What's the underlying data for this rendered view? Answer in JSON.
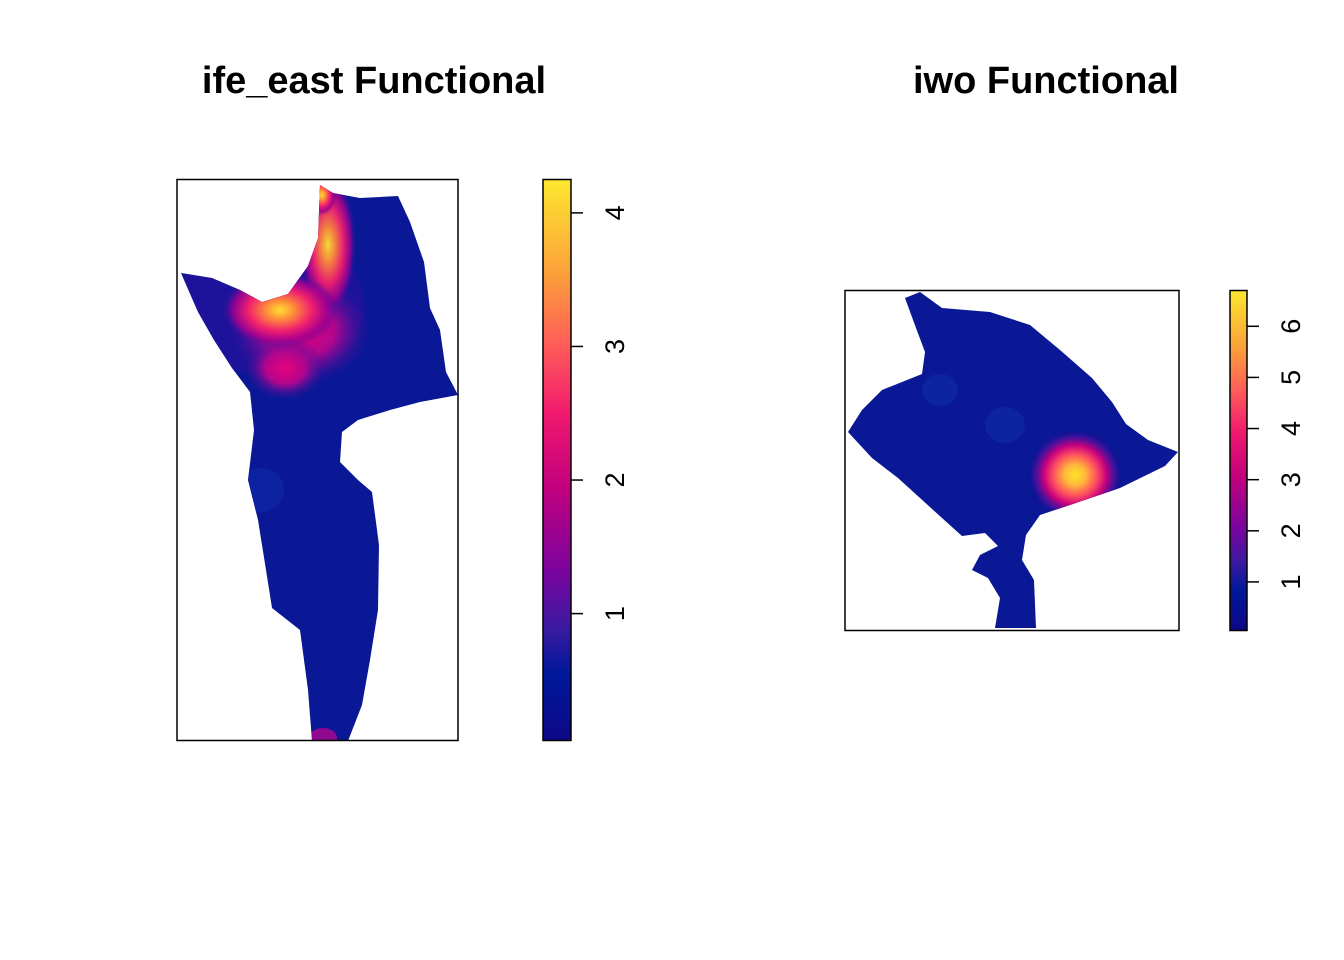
{
  "chart_data": [
    {
      "type": "heatmap",
      "title": "ife_east Functional",
      "xlabel": "",
      "ylabel": "",
      "axes_visible": false,
      "colorbar": {
        "range": [
          0.05,
          4.25
        ],
        "ticks": [
          1,
          2,
          3,
          4
        ],
        "tick_labels": [
          "1",
          "2",
          "3",
          "4"
        ],
        "palette": [
          "#0D0887",
          "#00189A",
          "#6A00A8",
          "#B12A90",
          "#E4007F",
          "#FF3D6E",
          "#FB9F3A",
          "#FDE72F"
        ]
      },
      "hotspots": [
        {
          "description": "northern ridge peak",
          "value": 4.2
        },
        {
          "description": "western bend peak",
          "value": 3.6
        },
        {
          "description": "central secondary peak",
          "value": 2.4
        }
      ],
      "background_value": 0.3
    },
    {
      "type": "heatmap",
      "title": "iwo Functional",
      "xlabel": "",
      "ylabel": "",
      "axes_visible": false,
      "colorbar": {
        "range": [
          0.05,
          6.7
        ],
        "ticks": [
          1,
          2,
          3,
          4,
          5,
          6
        ],
        "tick_labels": [
          "1",
          "2",
          "3",
          "4",
          "5",
          "6"
        ],
        "palette": [
          "#0D0887",
          "#00189A",
          "#6A00A8",
          "#B12A90",
          "#E4007F",
          "#FF3D6E",
          "#FB9F3A",
          "#FDE72F"
        ]
      },
      "hotspots": [
        {
          "description": "south-east peak",
          "value": 6.5
        }
      ],
      "background_value": 0.3
    }
  ]
}
